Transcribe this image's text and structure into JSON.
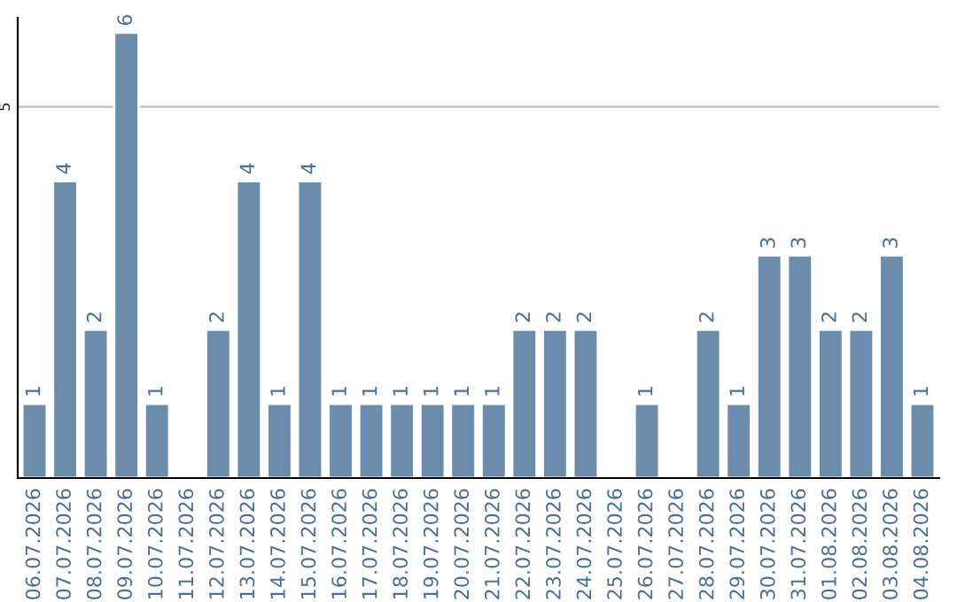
{
  "chart_data": {
    "type": "bar",
    "categories": [
      "06.07.2026",
      "07.07.2026",
      "08.07.2026",
      "09.07.2026",
      "10.07.2026",
      "11.07.2026",
      "12.07.2026",
      "13.07.2026",
      "14.07.2026",
      "15.07.2026",
      "16.07.2026",
      "17.07.2026",
      "18.07.2026",
      "19.07.2026",
      "20.07.2026",
      "21.07.2026",
      "22.07.2026",
      "23.07.2026",
      "24.07.2026",
      "25.07.2026",
      "26.07.2026",
      "27.07.2026",
      "28.07.2026",
      "29.07.2026",
      "30.07.2026",
      "31.07.2026",
      "01.08.2026",
      "02.08.2026",
      "03.08.2026",
      "04.08.2026"
    ],
    "values": [
      1,
      4,
      2,
      6,
      1,
      null,
      2,
      4,
      1,
      4,
      1,
      1,
      1,
      1,
      1,
      1,
      2,
      2,
      2,
      null,
      1,
      null,
      2,
      1,
      3,
      3,
      2,
      2,
      3,
      1
    ],
    "color": "#6b8cab",
    "ylim": [
      0,
      6.2
    ],
    "yticks": [
      5
    ],
    "grid": "y",
    "data_labels": true
  }
}
